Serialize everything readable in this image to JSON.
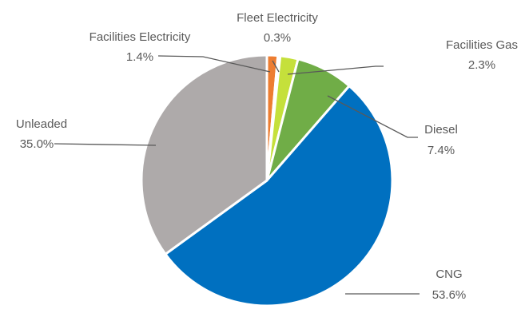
{
  "chart_data": {
    "type": "pie",
    "title": "",
    "start_angle_deg": 0,
    "direction": "clockwise",
    "slices": [
      {
        "name": "Facilities Electricity",
        "value": 1.4,
        "label": "1.4%",
        "color": "#ed7d31"
      },
      {
        "name": "Fleet Electricity",
        "value": 0.3,
        "label": "0.3%",
        "color": "#ffc000"
      },
      {
        "name": "Facilities Gas",
        "value": 2.3,
        "label": "2.3%",
        "color": "#c5e03b"
      },
      {
        "name": "Diesel",
        "value": 7.4,
        "label": "7.4%",
        "color": "#70ad47"
      },
      {
        "name": "CNG",
        "value": 53.6,
        "label": "53.6%",
        "color": "#0070c0"
      },
      {
        "name": "Unleaded",
        "value": 35.0,
        "label": "35.0%",
        "color": "#aeaaaa"
      }
    ]
  }
}
